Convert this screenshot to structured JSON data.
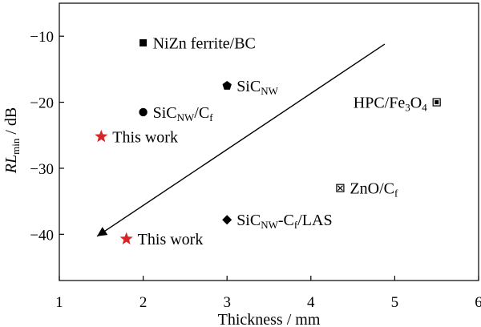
{
  "chart_data": {
    "type": "scatter",
    "title": "",
    "xlabel": "Thickness / mm",
    "ylabel": {
      "prefix": "RL",
      "subscript": "min",
      "suffix": " / dB"
    },
    "xlim": [
      1,
      6
    ],
    "ylim": [
      -47,
      -5
    ],
    "grid": false,
    "xticks": [
      1,
      2,
      3,
      4,
      5,
      6
    ],
    "yticks": [
      -10,
      -20,
      -30,
      -40
    ],
    "points": [
      {
        "x": 2.0,
        "y": -11.0,
        "marker": "square",
        "color": "#000000",
        "label_parts": [
          {
            "text": "NiZn ferrite/BC",
            "sub": false
          }
        ]
      },
      {
        "x": 3.0,
        "y": -17.5,
        "marker": "pentagon",
        "color": "#000000",
        "label_parts": [
          {
            "text": "SiC",
            "sub": false
          },
          {
            "text": "NW",
            "sub": true
          }
        ]
      },
      {
        "x": 2.0,
        "y": -21.5,
        "marker": "circle",
        "color": "#000000",
        "label_parts": [
          {
            "text": "SiC",
            "sub": false
          },
          {
            "text": "NW",
            "sub": true
          },
          {
            "text": "/C",
            "sub": false
          },
          {
            "text": "f",
            "sub": true
          }
        ]
      },
      {
        "x": 1.5,
        "y": -25.2,
        "marker": "star",
        "color": "#d62728",
        "label_parts": [
          {
            "text": "This work",
            "sub": false
          }
        ]
      },
      {
        "x": 5.5,
        "y": -20.0,
        "marker": "square-dot",
        "color": "#000000",
        "label_parts": [
          {
            "text": "HPC/Fe",
            "sub": false
          },
          {
            "text": "3",
            "sub": true
          },
          {
            "text": "O",
            "sub": false
          },
          {
            "text": "4",
            "sub": true
          }
        ]
      },
      {
        "x": 4.35,
        "y": -33.0,
        "marker": "boxed-x",
        "color": "#000000",
        "label_parts": [
          {
            "text": "ZnO/C",
            "sub": false
          },
          {
            "text": "f",
            "sub": true
          }
        ]
      },
      {
        "x": 3.0,
        "y": -37.8,
        "marker": "diamond",
        "color": "#000000",
        "label_parts": [
          {
            "text": "SiC",
            "sub": false
          },
          {
            "text": "NW",
            "sub": true
          },
          {
            "text": "-C",
            "sub": false
          },
          {
            "text": "f",
            "sub": true
          },
          {
            "text": "/LAS",
            "sub": false
          }
        ]
      },
      {
        "x": 1.8,
        "y": -40.7,
        "marker": "star",
        "color": "#d62728",
        "label_parts": [
          {
            "text": "This work",
            "sub": false
          }
        ]
      }
    ],
    "trend_arrow": {
      "start": {
        "x": 4.88,
        "y": -11.2
      },
      "end": {
        "x": 1.45,
        "y": -40.3
      }
    },
    "colors": {
      "axis": "#000000",
      "highlight": "#d62728"
    }
  }
}
